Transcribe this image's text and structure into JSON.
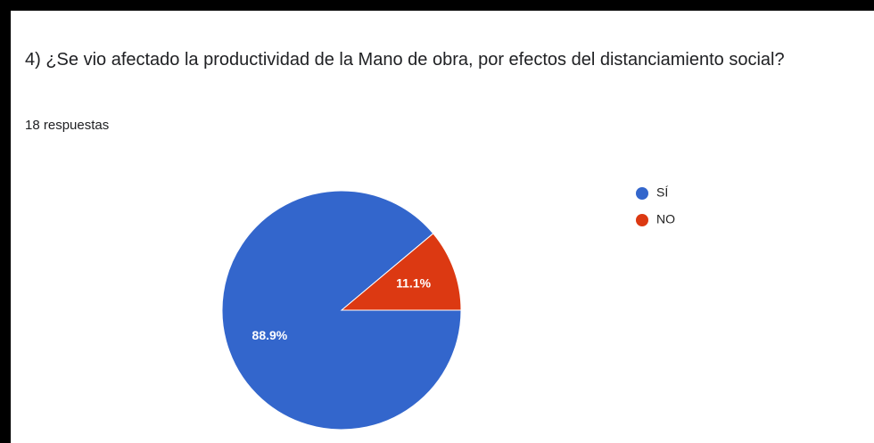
{
  "chart_data": {
    "type": "pie",
    "title": "4) ¿Se vio afectado la productividad de la Mano de obra, por efectos del distanciamiento social?",
    "subtitle": "18 respuestas",
    "categories": [
      "SÍ",
      "NO"
    ],
    "values": [
      88.9,
      11.1
    ],
    "value_labels": [
      "88.9%",
      "11.1%"
    ],
    "colors": [
      "#3366cc",
      "#dc3912"
    ],
    "legend": "right"
  }
}
